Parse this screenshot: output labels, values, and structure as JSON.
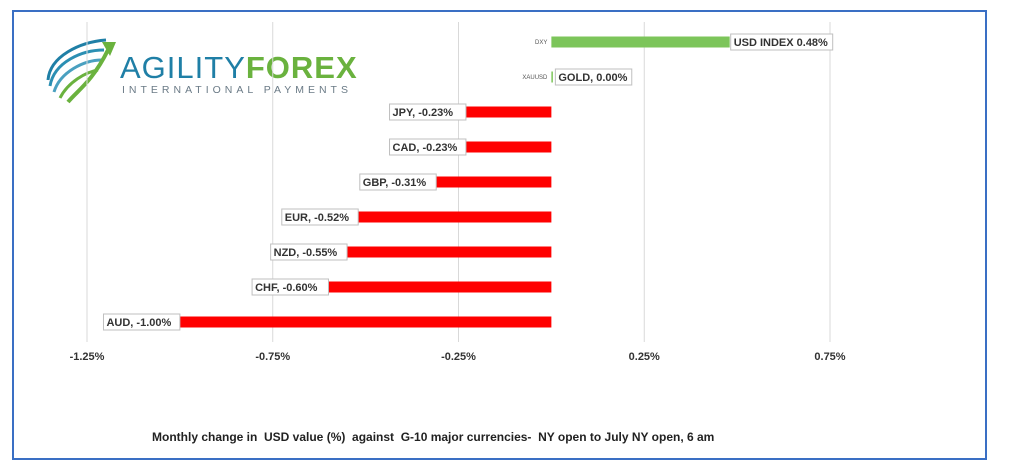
{
  "brand": {
    "name_part1": "AGILITY",
    "name_part2": "FOREX",
    "tagline": "INTERNATIONAL PAYMENTS"
  },
  "caption": "Monthly change in  USD value (%)  against  G-10 major currencies-  NY open to July NY open, 6 am",
  "colors": {
    "positive": "#7cc55a",
    "negative": "#ff0000",
    "frame": "#3a6fc4",
    "grid": "#d9d9d9"
  },
  "chart_data": {
    "type": "bar",
    "orientation": "horizontal",
    "xlim": [
      -1.25,
      0.75
    ],
    "xticks": [
      -1.25,
      -0.75,
      -0.25,
      0.25,
      0.75
    ],
    "xtick_labels": [
      "-1.25%",
      "-0.75%",
      "-0.25%",
      "0.25%",
      "0.75%"
    ],
    "grid": true,
    "categories": [
      "DXY",
      "XAUUSD",
      "JPY",
      "CAD",
      "GBP",
      "EUR",
      "NZD",
      "CHF",
      "AUD"
    ],
    "values": [
      0.48,
      0.0,
      -0.23,
      -0.23,
      -0.31,
      -0.52,
      -0.55,
      -0.6,
      -1.0
    ],
    "data_labels": [
      "USD INDEX 0.48%",
      "GOLD, 0.00%",
      "JPY, -0.23%",
      "CAD, -0.23%",
      "GBP, -0.31%",
      "EUR, -0.52%",
      "NZD, -0.55%",
      "CHF, -0.60%",
      "AUD, -1.00%"
    ]
  }
}
